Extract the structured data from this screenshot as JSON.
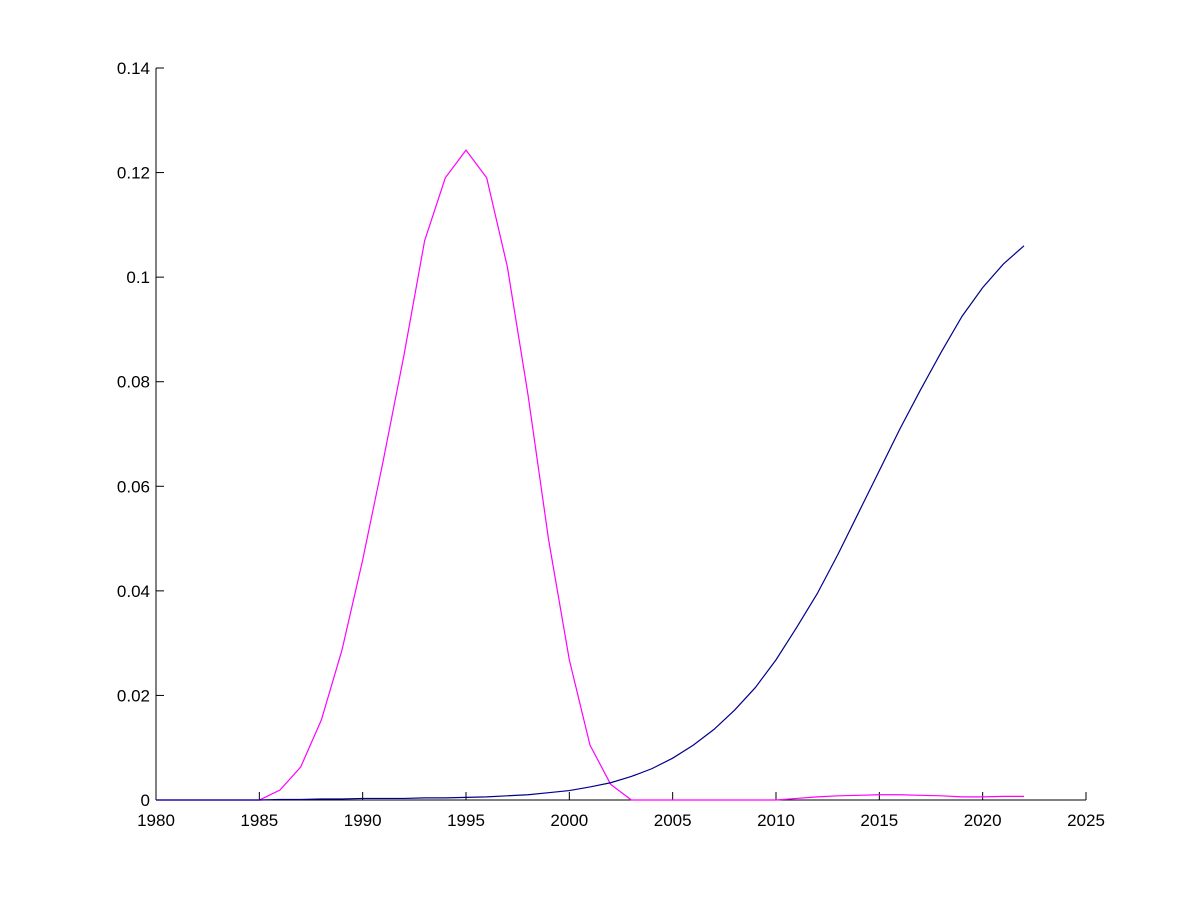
{
  "chart_data": {
    "type": "line",
    "x": [
      1980,
      1981,
      1982,
      1983,
      1984,
      1985,
      1986,
      1987,
      1988,
      1989,
      1990,
      1991,
      1992,
      1993,
      1994,
      1995,
      1996,
      1997,
      1998,
      1999,
      2000,
      2001,
      2002,
      2003,
      2004,
      2005,
      2006,
      2007,
      2008,
      2009,
      2010,
      2011,
      2012,
      2013,
      2014,
      2015,
      2016,
      2017,
      2018,
      2019,
      2020,
      2021,
      2022
    ],
    "series": [
      {
        "color": "#ff00ff",
        "values": [
          0,
          0,
          0,
          0,
          0,
          0,
          0.0019,
          0.0063,
          0.0153,
          0.0287,
          0.0459,
          0.065,
          0.0851,
          0.107,
          0.119,
          0.1243,
          0.119,
          0.102,
          0.0775,
          0.0497,
          0.0268,
          0.0105,
          0.003,
          0,
          0,
          0,
          0,
          0,
          0,
          0,
          0,
          0.0003,
          0.0006,
          0.0008,
          0.0009,
          0.001,
          0.001,
          0.0009,
          0.0008,
          0.0006,
          0.0006,
          0.0007,
          0.0007
        ]
      },
      {
        "color": "#00008b",
        "values": [
          0,
          0,
          0,
          0,
          0,
          0,
          0.0001,
          0.0001,
          0.0002,
          0.0002,
          0.0003,
          0.0003,
          0.0003,
          0.0004,
          0.0004,
          0.0005,
          0.0006,
          0.0008,
          0.001,
          0.0014,
          0.0018,
          0.0025,
          0.0033,
          0.0045,
          0.006,
          0.008,
          0.0105,
          0.0135,
          0.0172,
          0.0215,
          0.0268,
          0.033,
          0.0395,
          0.047,
          0.055,
          0.063,
          0.071,
          0.0785,
          0.0857,
          0.0925,
          0.098,
          0.1025,
          0.106
        ]
      }
    ],
    "xlim": [
      1980,
      2025
    ],
    "xticks": [
      1980,
      1985,
      1990,
      1995,
      2000,
      2005,
      2010,
      2015,
      2020,
      2025
    ],
    "ylim": [
      0,
      0.14
    ],
    "yticks": [
      0,
      0.02,
      0.04,
      0.06,
      0.08,
      0.1,
      0.12,
      0.14
    ]
  }
}
